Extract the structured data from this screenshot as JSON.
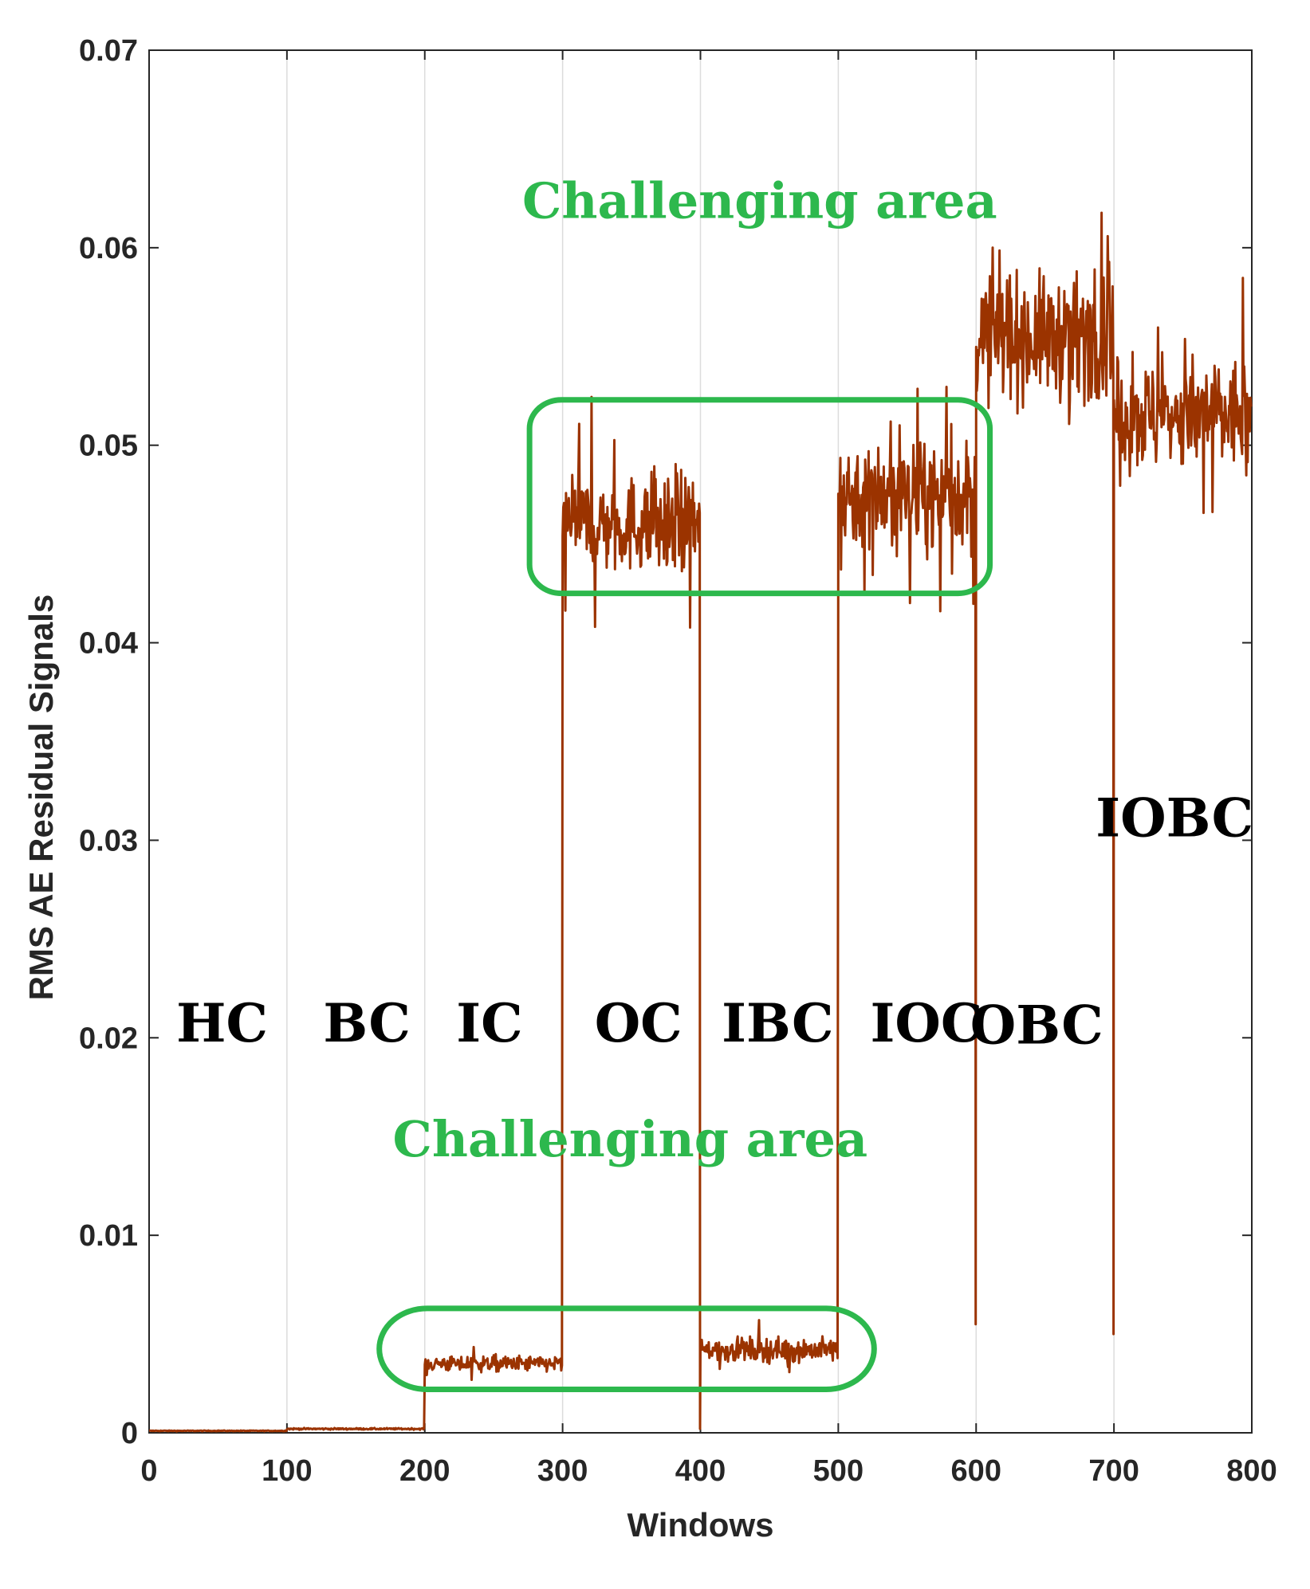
{
  "chart_data": {
    "type": "line",
    "xlabel": "Windows",
    "ylabel": "RMS AE Residual Signals",
    "xlim": [
      0,
      800
    ],
    "ylim": [
      0,
      0.07
    ],
    "xticks": [
      0,
      100,
      200,
      300,
      400,
      500,
      600,
      700,
      800
    ],
    "xtick_labels": [
      "0",
      "100",
      "200",
      "300",
      "400",
      "500",
      "600",
      "700",
      "800"
    ],
    "yticks": [
      0,
      0.01,
      0.02,
      0.03,
      0.04,
      0.05,
      0.06,
      0.07
    ],
    "ytick_labels": [
      "0",
      "0.01",
      "0.02",
      "0.03",
      "0.04",
      "0.05",
      "0.06",
      "0.07"
    ],
    "grid": "vertical",
    "colors": {
      "line": "#9b3300",
      "callout": "#2db84d",
      "grid": "#dcdcdc",
      "axis": "#262626"
    },
    "segments": [
      {
        "label": "HC",
        "x": [
          0,
          100
        ],
        "level": 0.0001,
        "noise": 1e-05
      },
      {
        "label": "BC",
        "x": [
          100,
          200
        ],
        "level": 0.0002,
        "noise": 2e-05
      },
      {
        "label": "IC",
        "x": [
          200,
          300
        ],
        "level": 0.0035,
        "noise": 0.0002
      },
      {
        "label": "OC",
        "x": [
          300,
          400
        ],
        "level": 0.046,
        "noise": 0.0012
      },
      {
        "label": "IBC",
        "x": [
          400,
          500
        ],
        "level": 0.0042,
        "noise": 0.0003
      },
      {
        "label": "IOC",
        "x": [
          500,
          600
        ],
        "level": 0.0475,
        "noise": 0.0013
      },
      {
        "label": "OBC",
        "x": [
          600,
          700
        ],
        "level": 0.0555,
        "noise": 0.0015
      },
      {
        "label": "IOBC",
        "x": [
          700,
          800
        ],
        "level": 0.0515,
        "noise": 0.0014
      }
    ],
    "transition_dips": [
      {
        "x": 400,
        "y": 0.0002
      },
      {
        "x": 600,
        "y": 0.0055
      },
      {
        "x": 700,
        "y": 0.005
      }
    ],
    "region_labels": [
      {
        "text": "HC",
        "x": 53,
        "y": 0.0198
      },
      {
        "text": "BC",
        "x": 158,
        "y": 0.0198
      },
      {
        "text": "IC",
        "x": 247,
        "y": 0.0198
      },
      {
        "text": "OC",
        "x": 355,
        "y": 0.0198
      },
      {
        "text": "IBC",
        "x": 456,
        "y": 0.0198
      },
      {
        "text": "IOC",
        "x": 564,
        "y": 0.0198
      },
      {
        "text": "OBC",
        "x": 644,
        "y": 0.0197
      },
      {
        "text": "IOBC",
        "x": 744,
        "y": 0.0302
      }
    ],
    "annotations": [
      {
        "text": "Challenging area",
        "x": 443,
        "y": 0.0615,
        "box": {
          "x": [
            276,
            610
          ],
          "y": [
            0.0425,
            0.0523
          ]
        }
      },
      {
        "text": "Challenging area",
        "x": 349,
        "y": 0.014,
        "box": {
          "x": [
            167,
            526
          ],
          "y": [
            0.0022,
            0.0063
          ]
        }
      }
    ]
  }
}
